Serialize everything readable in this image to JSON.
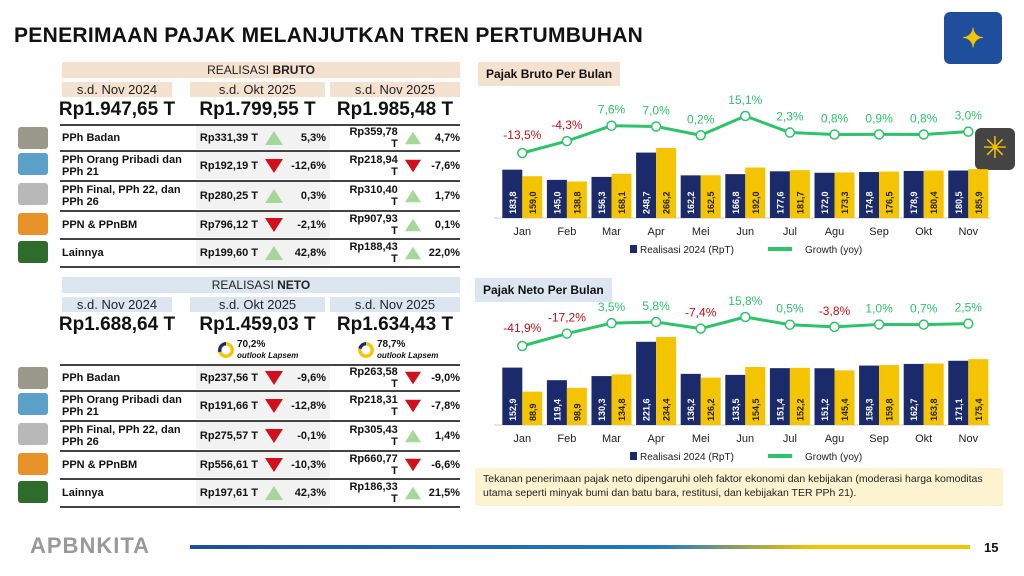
{
  "title": "PENERIMAAN PAJAK MELANJUTKAN TREN PERTUMBUHAN",
  "colors": {
    "navy": "#1b2a6b",
    "yellow": "#f5c400",
    "green": "#2ec26a",
    "red": "#c0101a",
    "up": "#a6d79a",
    "down": "#d0101a"
  },
  "bruto": {
    "header_prefix": "REALISASI ",
    "header_bold": "BRUTO",
    "periods": [
      "s.d. Nov 2024",
      "s.d. Okt 2025",
      "s.d. Nov 2025"
    ],
    "totals": [
      "Rp1.947,65 T",
      "Rp1.799,55 T",
      "Rp1.985,48 T"
    ],
    "rows": [
      {
        "label": "PPh Badan",
        "icon": "factory-icon",
        "v1": "Rp331,39 T",
        "d1": "up",
        "p1": "5,3%",
        "v2": "Rp359,78 T",
        "d2": "up",
        "p2": "4,7%"
      },
      {
        "label": "PPh Orang Pribadi dan PPh 21",
        "icon": "people-icon",
        "v1": "Rp192,19 T",
        "d1": "down",
        "p1": "-12,6%",
        "v2": "Rp218,94 T",
        "d2": "down",
        "p2": "-7,6%"
      },
      {
        "label": "PPh Final, PPh 22, dan PPh 26",
        "icon": "document-icon",
        "v1": "Rp280,25 T",
        "d1": "up",
        "p1": "0,3%",
        "v2": "Rp310,40 T",
        "d2": "up",
        "p2": "1,7%"
      },
      {
        "label": "PPN & PPnBM",
        "icon": "boxes-icon",
        "v1": "Rp796,12 T",
        "d1": "down",
        "p1": "-2,1%",
        "v2": "Rp907,93 T",
        "d2": "up",
        "p2": "0,1%"
      },
      {
        "label": "Lainnya",
        "icon": "palm-tree-icon",
        "v1": "Rp199,60 T",
        "d1": "up",
        "p1": "42,8%",
        "v2": "Rp188,43 T",
        "d2": "up",
        "p2": "22,0%"
      }
    ]
  },
  "neto": {
    "header_prefix": "REALISASI ",
    "header_bold": "NETO",
    "periods": [
      "s.d. Nov 2024",
      "s.d. Okt 2025",
      "s.d. Nov 2025"
    ],
    "totals": [
      "Rp1.688,64 T",
      "Rp1.459,03 T",
      "Rp1.634,43 T"
    ],
    "outlook": [
      {
        "pct": "70,2%",
        "value": 70.2,
        "label": "outlook Lapsem"
      },
      {
        "pct": "78,7%",
        "value": 78.7,
        "label": "outlook Lapsem"
      }
    ],
    "rows": [
      {
        "label": "PPh Badan",
        "icon": "factory-icon",
        "v1": "Rp237,56 T",
        "d1": "down",
        "p1": "-9,6%",
        "v2": "Rp263,58 T",
        "d2": "down",
        "p2": "-9,0%"
      },
      {
        "label": "PPh Orang Pribadi dan PPh 21",
        "icon": "people-icon",
        "v1": "Rp191,66 T",
        "d1": "down",
        "p1": "-12,8%",
        "v2": "Rp218,31 T",
        "d2": "down",
        "p2": "-7,8%"
      },
      {
        "label": "PPh Final, PPh 22, dan PPh 26",
        "icon": "document-icon",
        "v1": "Rp275,57 T",
        "d1": "down",
        "p1": "-0,1%",
        "v2": "Rp305,43 T",
        "d2": "up",
        "p2": "1,4%"
      },
      {
        "label": "PPN & PPnBM",
        "icon": "boxes-icon",
        "v1": "Rp556,61 T",
        "d1": "down",
        "p1": "-10,3%",
        "v2": "Rp660,77 T",
        "d2": "down",
        "p2": "-6,6%"
      },
      {
        "label": "Lainnya",
        "icon": "palm-tree-icon",
        "v1": "Rp197,61 T",
        "d1": "up",
        "p1": "42,3%",
        "v2": "Rp186,33 T",
        "d2": "up",
        "p2": "21,5%"
      }
    ]
  },
  "chart_data": [
    {
      "type": "bar+line",
      "title": "Pajak Bruto Per Bulan",
      "categories": [
        "Jan",
        "Feb",
        "Mar",
        "Apr",
        "Mei",
        "Jun",
        "Jul",
        "Agu",
        "Sep",
        "Okt",
        "Nov"
      ],
      "series": [
        {
          "name": "Realisasi 2024 (RpT)",
          "values": [
            183.8,
            145.0,
            156.3,
            248.7,
            162.2,
            166.8,
            177.6,
            172.0,
            174.8,
            178.9,
            180.5
          ],
          "labels": [
            "183,8",
            "145,0",
            "156,3",
            "248,7",
            "162,2",
            "166,8",
            "177,6",
            "172,0",
            "174,8",
            "178,9",
            "180,5"
          ]
        },
        {
          "values": [
            159.0,
            138.8,
            168.1,
            266.2,
            162.5,
            192.0,
            181.7,
            173.3,
            176.5,
            180.4,
            185.9
          ],
          "labels": [
            "159,0",
            "138,8",
            "168,1",
            "266,2",
            "162,5",
            "192,0",
            "181,7",
            "173,3",
            "176,5",
            "180,4",
            "185,9"
          ]
        },
        {
          "name": "Growth (yoy)",
          "values": [
            -13.5,
            -4.3,
            7.6,
            7.0,
            0.2,
            15.1,
            2.3,
            0.8,
            0.9,
            0.8,
            3.0
          ],
          "labels": [
            "-13,5%",
            "-4,3%",
            "7,6%",
            "7,0%",
            "0,2%",
            "15,1%",
            "2,3%",
            "0,8%",
            "0,9%",
            "0,8%",
            "3,0%"
          ]
        }
      ],
      "legend": [
        "Realisasi 2024 (RpT)",
        "Growth (yoy)"
      ]
    },
    {
      "type": "bar+line",
      "title": "Pajak Neto Per Bulan",
      "categories": [
        "Jan",
        "Feb",
        "Mar",
        "Apr",
        "Mei",
        "Jun",
        "Jul",
        "Agu",
        "Sep",
        "Okt",
        "Nov"
      ],
      "series": [
        {
          "name": "Realisasi 2024 (RpT)",
          "values": [
            152.9,
            119.4,
            130.3,
            221.6,
            136.2,
            133.5,
            151.4,
            151.2,
            158.3,
            162.7,
            171.1
          ],
          "labels": [
            "152,9",
            "119,4",
            "130,3",
            "221,6",
            "136,2",
            "133,5",
            "151,4",
            "151,2",
            "158,3",
            "162,7",
            "171,1"
          ]
        },
        {
          "values": [
            88.9,
            98.9,
            134.8,
            234.4,
            126.2,
            154.5,
            152.2,
            145.4,
            159.8,
            163.8,
            175.4
          ],
          "labels": [
            "88,9",
            "98,9",
            "134,8",
            "234,4",
            "126,2",
            "154,5",
            "152,2",
            "145,4",
            "159,8",
            "163,8",
            "175,4"
          ]
        },
        {
          "name": "Growth (yoy)",
          "values": [
            -41.9,
            -17.2,
            3.5,
            5.8,
            -7.4,
            15.8,
            0.5,
            -3.8,
            1.0,
            0.7,
            2.5
          ],
          "labels": [
            "-41,9%",
            "-17,2%",
            "3,5%",
            "5,8%",
            "-7,4%",
            "15,8%",
            "0,5%",
            "-3,8%",
            "1,0%",
            "0,7%",
            "2,5%"
          ]
        }
      ],
      "legend": [
        "Realisasi 2024 (RpT)",
        "Growth (yoy)"
      ]
    }
  ],
  "note": "Tekanan penerimaan pajak neto dipengaruhi oleh faktor ekonomi dan kebijakan (moderasi harga komoditas utama seperti minyak bumi dan batu bara, restitusi, dan kebijakan TER PPh 21).",
  "footer": {
    "brand": "APBNKITA",
    "page": "15"
  }
}
